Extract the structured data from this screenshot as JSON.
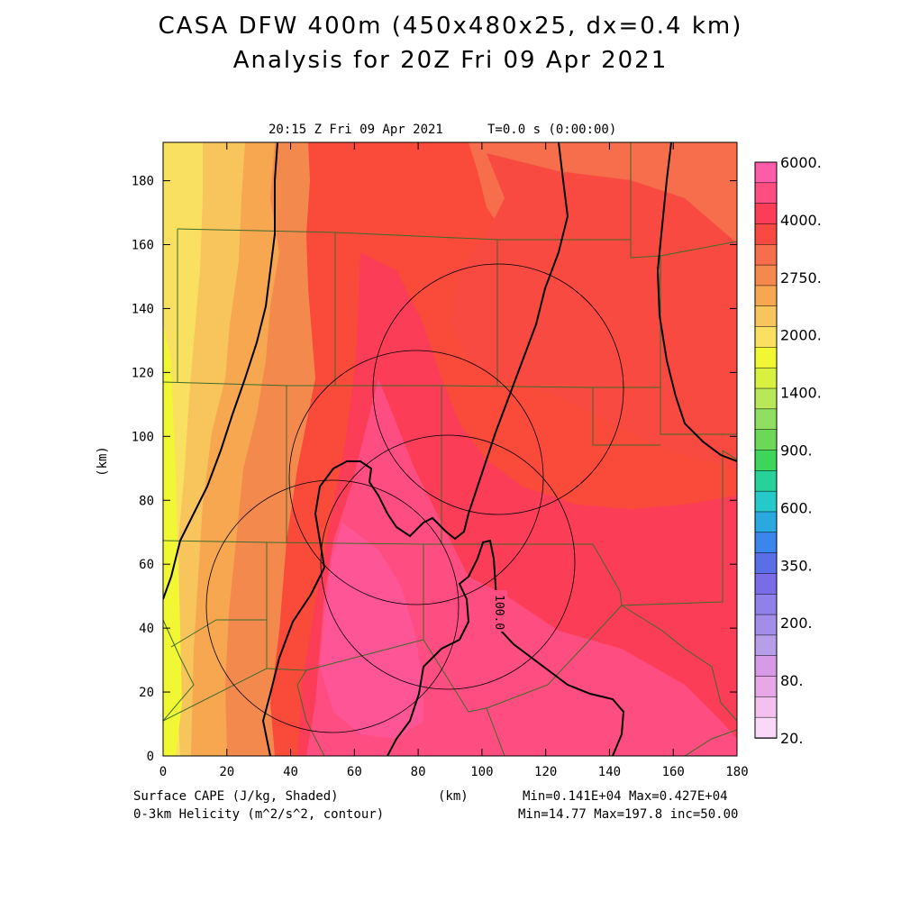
{
  "header": {
    "title_line1": "CASA DFW 400m (450x480x25, dx=0.4 km)",
    "title_line2": "Analysis for 20Z Fri 09 Apr 2021",
    "valid_time": "20:15 Z Fri 09 Apr 2021",
    "model_time": "T=0.0 s (0:00:00)"
  },
  "axes": {
    "x_label": "(km)",
    "y_label": "(km)",
    "x_ticks": [
      "0",
      "20",
      "40",
      "60",
      "80",
      "100",
      "120",
      "140",
      "160",
      "180"
    ],
    "y_ticks": [
      "0",
      "20",
      "40",
      "60",
      "80",
      "100",
      "120",
      "140",
      "160",
      "180"
    ],
    "x_range": [
      0,
      180
    ],
    "y_range": [
      0,
      192
    ]
  },
  "legend": {
    "shaded_label": "Surface CAPE (J/kg, Shaded)",
    "contour_label": "0-3km Helicity (m^2/s^2, contour)",
    "shaded_stats": "Min=0.141E+04 Max=0.427E+04",
    "contour_stats": "Min=14.77 Max=197.8 inc=50.00",
    "contour_value_label": "100.0"
  },
  "colorbar": {
    "labels": [
      "6000.",
      "4000.",
      "2750.",
      "2000.",
      "1400.",
      "900.",
      "600.",
      "350.",
      "200.",
      "80.",
      "20."
    ],
    "colors": [
      "#fe5ca8",
      "#fe4d80",
      "#fb3d58",
      "#f84a40",
      "#f76e4d",
      "#f4894e",
      "#f6a750",
      "#f8c45c",
      "#f9e060",
      "#f2f734",
      "#d8f040",
      "#b8e858",
      "#8fe060",
      "#6cd858",
      "#3ed65a",
      "#26d29a",
      "#26c9c9",
      "#2aa8e0",
      "#3a86ec",
      "#5a6ee8",
      "#7a6ce6",
      "#8f80ea",
      "#a28ee8",
      "#b69ee8",
      "#d79ae6",
      "#e8a8e8",
      "#f4c0f0",
      "#fad8f8"
    ]
  },
  "colors": {
    "coastal_yellow": "#f2f734",
    "counties": "#3d6b2a",
    "radar_rings": "#000000"
  }
}
